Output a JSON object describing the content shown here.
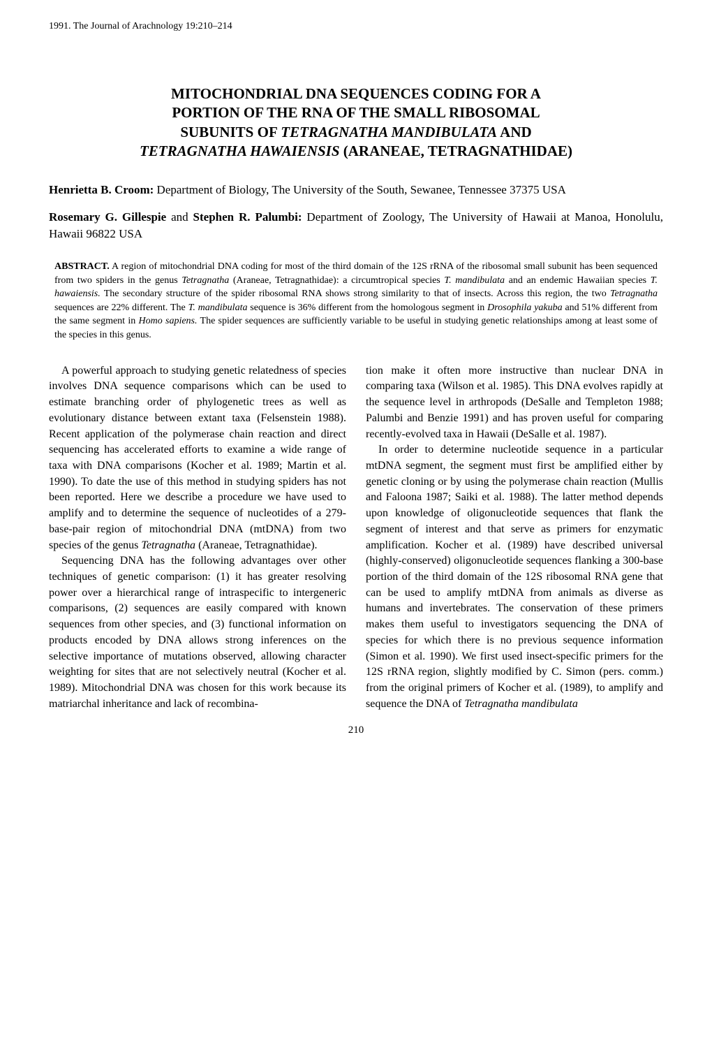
{
  "journal_line": "1991. The Journal of Arachnology 19:210–214",
  "title": "MITOCHONDRIAL DNA SEQUENCES CODING FOR A PORTION OF THE RNA OF THE SMALL RIBOSOMAL SUBUNITS OF TETRAGNATHA MANDIBULATA AND TETRAGNATHA HAWAIENSIS (ARANEAE, TETRAGNATHIDAE)",
  "authors": {
    "block1_name": "Henrietta B. Croom:",
    "block1_affil": " Department of Biology, The University of the South, Sewanee, Tennessee 37375 USA",
    "block2_name1": "Rosemary G. Gillespie",
    "block2_and": " and ",
    "block2_name2": "Stephen R. Palumbi:",
    "block2_affil": " Department of Zoology, The University of Hawaii at Manoa, Honolulu, Hawaii 96822 USA"
  },
  "abstract": {
    "label": "ABSTRACT.",
    "text": " A region of mitochondrial DNA coding for most of the third domain of the 12S rRNA of the ribosomal small subunit has been sequenced from two spiders in the genus Tetragnatha (Araneae, Tetragnathidae): a circumtropical species T. mandibulata and an endemic Hawaiian species T. hawaiensis. The secondary structure of the spider ribosomal RNA shows strong similarity to that of insects. Across this region, the two Tetragnatha sequences are 22% different. The T. mandibulata sequence is 36% different from the homologous segment in Drosophila yakuba and 51% different from the same segment in Homo sapiens. The spider sequences are sufficiently variable to be useful in studying genetic relationships among at least some of the species in this genus."
  },
  "body": {
    "left": {
      "p1": "A powerful approach to studying genetic relatedness of species involves DNA sequence comparisons which can be used to estimate branching order of phylogenetic trees as well as evolutionary distance between extant taxa (Felsenstein 1988). Recent application of the polymerase chain reaction and direct sequencing has accelerated efforts to examine a wide range of taxa with DNA comparisons (Kocher et al. 1989; Martin et al. 1990). To date the use of this method in studying spiders has not been reported. Here we describe a procedure we have used to amplify and to determine the sequence of nucleotides of a 279-base-pair region of mitochondrial DNA (mtDNA) from two species of the genus Tetragnatha (Araneae, Tetragnathidae).",
      "p2": "Sequencing DNA has the following advantages over other techniques of genetic comparison: (1) it has greater resolving power over a hierarchical range of intraspecific to intergeneric comparisons, (2) sequences are easily compared with known sequences from other species, and (3) functional information on products encoded by DNA allows strong inferences on the selective importance of mutations observed, allowing character weighting for sites that are not selectively neutral (Kocher et al. 1989). Mitochondrial DNA was chosen for this work because its matriarchal inheritance and lack of recombina-"
    },
    "right": {
      "p1": "tion make it often more instructive than nuclear DNA in comparing taxa (Wilson et al. 1985). This DNA evolves rapidly at the sequence level in arthropods (DeSalle and Templeton 1988; Palumbi and Benzie 1991) and has proven useful for comparing recently-evolved taxa in Hawaii (DeSalle et al. 1987).",
      "p2": "In order to determine nucleotide sequence in a particular mtDNA segment, the segment must first be amplified either by genetic cloning or by using the polymerase chain reaction (Mullis and Faloona 1987; Saiki et al. 1988). The latter method depends upon knowledge of oligonucleotide sequences that flank the segment of interest and that serve as primers for enzymatic amplification. Kocher et al. (1989) have described universal (highly-conserved) oligonucleotide sequences flanking a 300-base portion of the third domain of the 12S ribosomal RNA gene that can be used to amplify mtDNA from animals as diverse as humans and invertebrates. The conservation of these primers makes them useful to investigators sequencing the DNA of species for which there is no previous sequence information (Simon et al. 1990). We first used insect-specific primers for the 12S rRNA region, slightly modified by C. Simon (pers. comm.) from the original primers of Kocher et al. (1989), to amplify and sequence the DNA of Tetragnatha mandibulata"
    }
  },
  "page_number": "210"
}
